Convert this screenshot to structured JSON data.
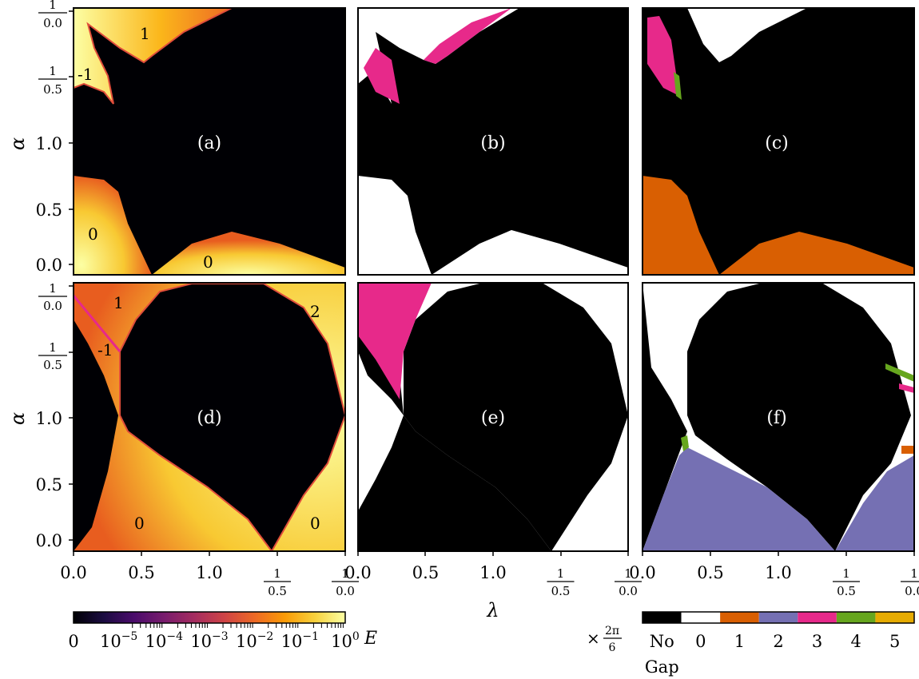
{
  "axes": {
    "xlabel": "λ",
    "ylabel": "α",
    "x_ticks": [
      {
        "label": "0.0",
        "kind": "plain"
      },
      {
        "label": "0.5",
        "kind": "plain"
      },
      {
        "label": "1.0",
        "kind": "plain"
      },
      {
        "num": "1",
        "den": "0.5",
        "kind": "frac"
      },
      {
        "num": "1",
        "den": "0.0",
        "kind": "frac"
      }
    ],
    "y_ticks": [
      {
        "num": "1",
        "den": "0.0",
        "kind": "frac"
      },
      {
        "num": "1",
        "den": "0.5",
        "kind": "frac"
      },
      {
        "label": "1.0",
        "kind": "plain"
      },
      {
        "label": "0.5",
        "kind": "plain"
      },
      {
        "label": "0.0",
        "kind": "plain"
      }
    ]
  },
  "panels": [
    {
      "id": "a",
      "label": "(a)",
      "kind": "energy",
      "annotations": [
        "1",
        "-1",
        "0",
        "0"
      ]
    },
    {
      "id": "b",
      "label": "(b)",
      "kind": "gap"
    },
    {
      "id": "c",
      "label": "(c)",
      "kind": "gap"
    },
    {
      "id": "d",
      "label": "(d)",
      "kind": "energy",
      "annotations": [
        "1",
        "-1",
        "2",
        "0",
        "0"
      ]
    },
    {
      "id": "e",
      "label": "(e)",
      "kind": "gap"
    },
    {
      "id": "f",
      "label": "(f)",
      "kind": "gap"
    }
  ],
  "energy_colorbar": {
    "label": "E",
    "tick_labels": [
      "0",
      "10",
      "10",
      "10",
      "10",
      "10",
      "10"
    ],
    "tick_exponents": [
      "",
      "−5",
      "−4",
      "−3",
      "−2",
      "−1",
      "0"
    ],
    "colors": [
      "#000004",
      "#1b0c41",
      "#4a0c6b",
      "#781c6d",
      "#a52c60",
      "#cf4446",
      "#ed6925",
      "#fb9b06",
      "#f7d13d",
      "#fcffa4"
    ]
  },
  "gap_colorbar": {
    "prefix": "×",
    "prefix_num": "2π",
    "prefix_den": "6",
    "categories": [
      "No Gap",
      "0",
      "1",
      "2",
      "3",
      "4",
      "5"
    ],
    "no_gap_line1": "No",
    "no_gap_line2": "Gap",
    "colors": {
      "No Gap": "#000000",
      "0": "#ffffff",
      "1": "#d95f02",
      "2": "#7570b3",
      "3": "#e7298a",
      "4": "#66a61e",
      "5": "#e6ab02"
    }
  },
  "chart_data": [
    {
      "type": "heatmap",
      "panel": "(a)",
      "xlabel": "",
      "ylabel": "α",
      "x_ticks": [
        "0.0",
        "0.5",
        "1.0",
        "1/0.5",
        "1/0.0"
      ],
      "y_ticks": [
        "0.0",
        "0.5",
        "1.0",
        "1/0.5",
        "1/0.0"
      ],
      "value_scale": "log",
      "value_range": [
        0,
        1
      ],
      "region_labels": [
        "1",
        "-1",
        "0",
        "0"
      ]
    },
    {
      "type": "heatmap",
      "panel": "(b)",
      "categorical": true,
      "categories": [
        "No Gap",
        "0",
        "3"
      ]
    },
    {
      "type": "heatmap",
      "panel": "(c)",
      "categorical": true,
      "categories": [
        "No Gap",
        "0",
        "1",
        "3",
        "4"
      ]
    },
    {
      "type": "heatmap",
      "panel": "(d)",
      "xlabel": "",
      "ylabel": "α",
      "value_scale": "log",
      "value_range": [
        0,
        1
      ],
      "region_labels": [
        "1",
        "-1",
        "2",
        "0",
        "0"
      ]
    },
    {
      "type": "heatmap",
      "panel": "(e)",
      "xlabel": "λ",
      "categorical": true,
      "categories": [
        "No Gap",
        "0",
        "3"
      ]
    },
    {
      "type": "heatmap",
      "panel": "(f)",
      "categorical": true,
      "categories": [
        "No Gap",
        "0",
        "1",
        "2",
        "3",
        "4",
        "5"
      ]
    }
  ]
}
